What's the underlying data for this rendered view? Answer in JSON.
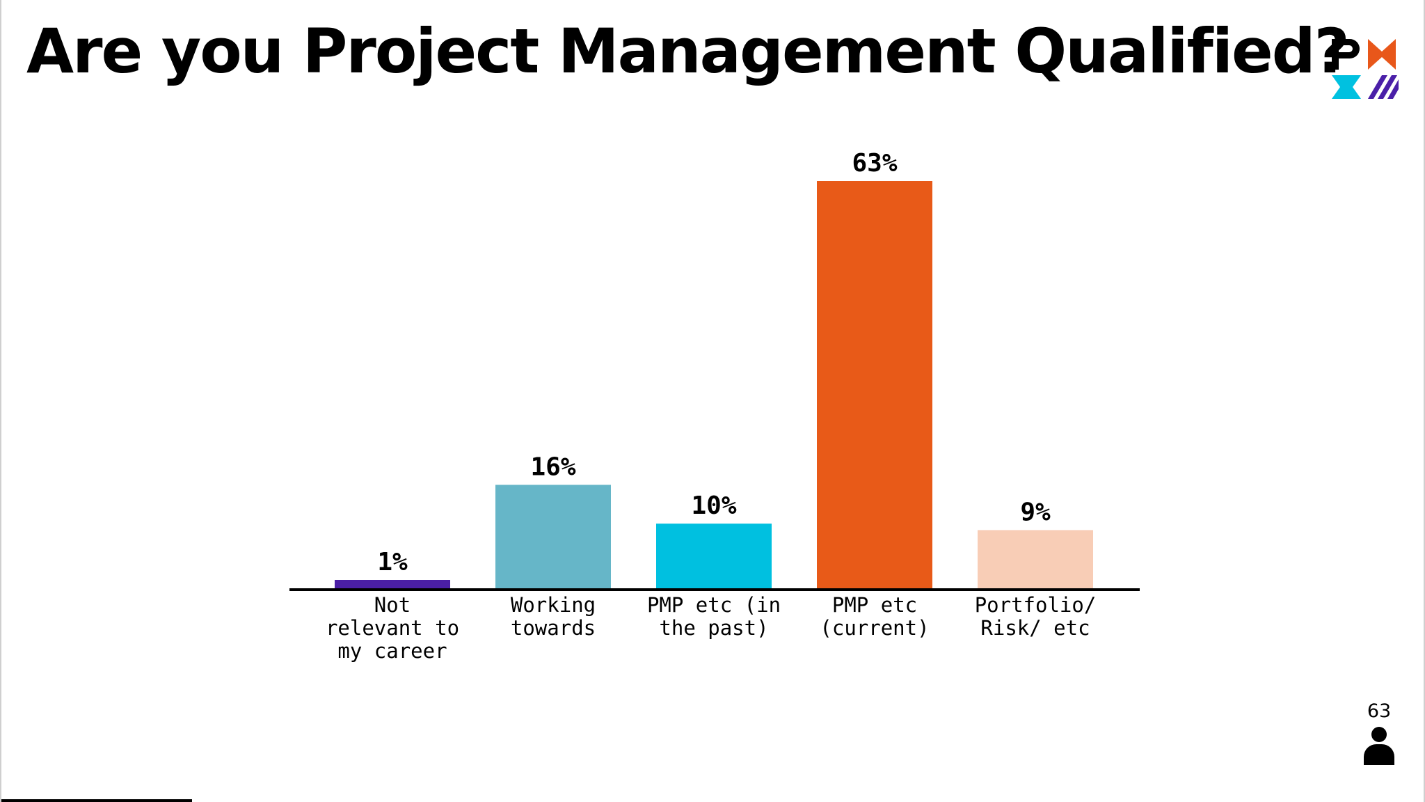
{
  "slide": {
    "title": "Are you Project Management Qualified?",
    "logo_text": "PMI",
    "participant_count": "63"
  },
  "colors": {
    "logo_purple": "#4a1fa8",
    "logo_orange": "#e8571a",
    "logo_cyan": "#00c1e0"
  },
  "icons": {
    "logo": "pmi-logo-icon",
    "participants": "person-icon"
  },
  "chart_data": {
    "type": "bar",
    "categories": [
      [
        "Not",
        "relevant to",
        "my career"
      ],
      [
        "Working",
        "towards"
      ],
      [
        "PMP etc (in",
        "the past)"
      ],
      [
        "PMP etc",
        "(current)"
      ],
      [
        "Portfolio/",
        "Risk/ etc"
      ]
    ],
    "values": [
      1,
      16,
      10,
      63,
      9
    ],
    "value_labels": [
      "1%",
      "16%",
      "10%",
      "63%",
      "9%"
    ],
    "colors": [
      "#4b1fa5",
      "#66b6c8",
      "#00c0e0",
      "#e85a18",
      "#f8cdb6"
    ],
    "unit": "%",
    "ylim": [
      0,
      63
    ],
    "grid": false,
    "legend": "none",
    "xlabel": "",
    "ylabel": ""
  }
}
